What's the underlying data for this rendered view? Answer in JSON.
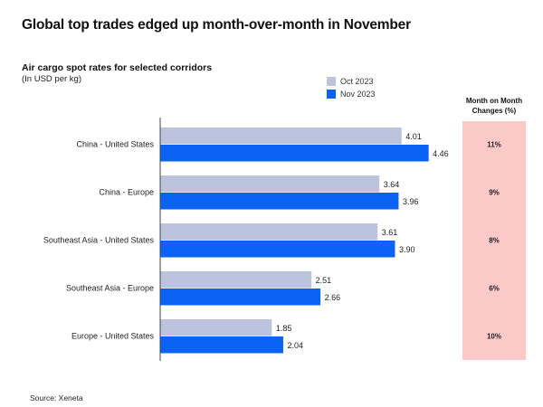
{
  "title": "Global top trades edged up month-over-month in November",
  "source": "Source: Xeneta",
  "colors": {
    "oct": "#bcc3dd",
    "nov": "#0a63f5",
    "mom_bg": "#fcc9c9"
  },
  "chart_data": {
    "type": "bar",
    "orientation": "horizontal",
    "title": "Air cargo spot rates for selected corridors",
    "subtitle": "(In USD per kg)",
    "xlabel": "",
    "ylabel": "",
    "xlim": [
      0,
      4.46
    ],
    "grid": false,
    "legend_position": "top-right",
    "categories": [
      "China - United States",
      "China - Europe",
      "Southeast Asia - United States",
      "Southeast Asia - Europe",
      "Europe - United States"
    ],
    "series": [
      {
        "name": "Oct 2023",
        "values": [
          4.01,
          3.64,
          3.61,
          2.51,
          1.85
        ],
        "labels": [
          "4.01",
          "3.64",
          "3.61",
          "2.51",
          "1.85"
        ]
      },
      {
        "name": "Nov 2023",
        "values": [
          4.46,
          3.96,
          3.9,
          2.66,
          2.04
        ],
        "labels": [
          "4.46",
          "3.96",
          "3.90",
          "2.66",
          "2.04"
        ]
      }
    ],
    "mom_header": "Month on Month Changes (%)",
    "mom_header_lines": [
      "Month on Month",
      "Changes (%)"
    ],
    "mom_changes": [
      "11%",
      "9%",
      "8%",
      "6%",
      "10%"
    ]
  }
}
